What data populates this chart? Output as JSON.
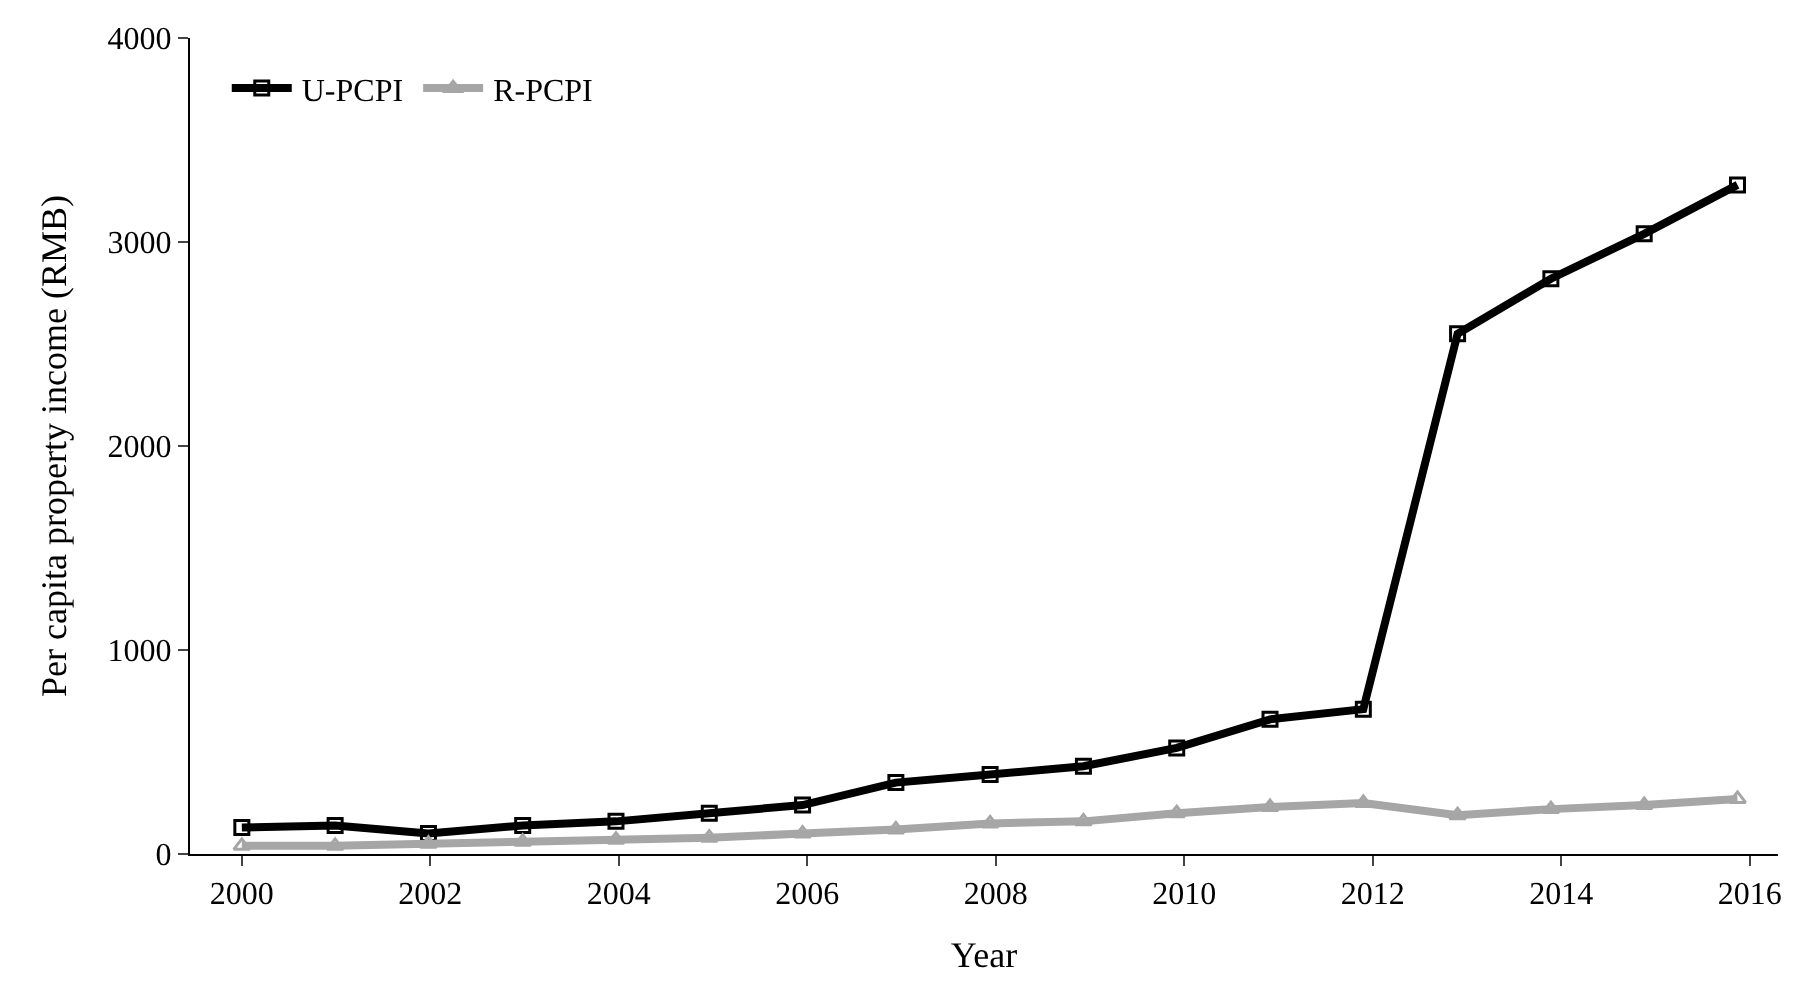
{
  "chart_data": {
    "type": "line",
    "xlabel": "Year",
    "ylabel": "Per capita property income (RMB)",
    "x": [
      2000,
      2000.99,
      2001.98,
      2002.98,
      2003.97,
      2004.96,
      2005.95,
      2006.94,
      2007.94,
      2008.93,
      2009.92,
      2010.91,
      2011.9,
      2012.9,
      2013.89,
      2014.88,
      2015.87
    ],
    "series": [
      {
        "name": "U-PCPI",
        "color": "#000000",
        "marker": "square",
        "values": [
          130,
          140,
          100,
          140,
          160,
          200,
          240,
          350,
          390,
          430,
          520,
          660,
          710,
          2550,
          2820,
          3040,
          3280
        ]
      },
      {
        "name": "R-PCPI",
        "color": "#a6a6a6",
        "marker": "triangle",
        "values": [
          40,
          40,
          50,
          60,
          70,
          80,
          100,
          120,
          150,
          160,
          200,
          230,
          250,
          190,
          220,
          240,
          270
        ]
      }
    ],
    "xlim": [
      1999.45,
      2016.3
    ],
    "xticks": [
      2000,
      2002,
      2004,
      2006,
      2008,
      2010,
      2012,
      2014,
      2016
    ],
    "ylim": [
      0,
      4000
    ],
    "yticks": [
      0,
      1000,
      2000,
      3000,
      4000
    ],
    "legend": "top left",
    "line_style": "solid"
  }
}
